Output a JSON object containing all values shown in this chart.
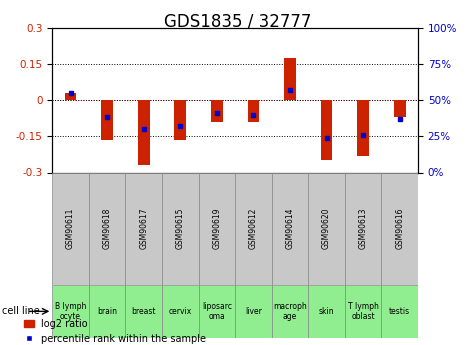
{
  "title": "GDS1835 / 32777",
  "samples": [
    "GSM90611",
    "GSM90618",
    "GSM90617",
    "GSM90615",
    "GSM90619",
    "GSM90612",
    "GSM90614",
    "GSM90620",
    "GSM90613",
    "GSM90616"
  ],
  "cell_lines": [
    "B lymph\nocyte",
    "brain",
    "breast",
    "cervix",
    "liposarc\noma",
    "liver",
    "macroph\nage",
    "skin",
    "T lymph\noblast",
    "testis"
  ],
  "log2_ratios": [
    0.03,
    -0.165,
    -0.27,
    -0.165,
    -0.09,
    -0.09,
    0.175,
    -0.25,
    -0.23,
    -0.07
  ],
  "percentile_ranks": [
    55,
    38,
    30,
    32,
    41,
    40,
    57,
    24,
    26,
    37
  ],
  "ylim_left": [
    -0.3,
    0.3
  ],
  "ylim_right": [
    0,
    100
  ],
  "yticks_left": [
    -0.3,
    -0.15,
    0,
    0.15,
    0.3
  ],
  "yticks_right": [
    0,
    25,
    50,
    75,
    100
  ],
  "bar_color": "#cc2200",
  "dot_color": "#0000cc",
  "gsm_box_color": "#c8c8c8",
  "cell_box_color": "#90ee90",
  "title_fontsize": 12,
  "tick_fontsize": 7.5,
  "legend_fontsize": 7
}
